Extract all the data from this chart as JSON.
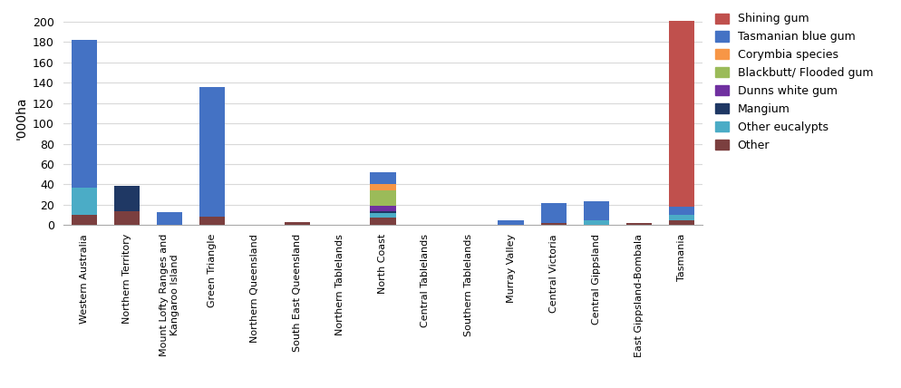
{
  "categories": [
    "Western Australia",
    "Northern Territory",
    "Mount Lofty Ranges and\nKangaroo Island",
    "Green Triangle",
    "Northern Queensland",
    "South East Queensland",
    "Northern Tablelands",
    "North Coast",
    "Central Tablelands",
    "Southern Tablelands",
    "Murray Valley",
    "Central Victoria",
    "Central Gippsland",
    "East Gippsland-Bombala",
    "Tasmania"
  ],
  "series": {
    "Other": {
      "color": "#7B3F3F",
      "values": [
        10,
        14,
        0,
        8,
        0,
        3,
        0,
        7,
        0,
        0,
        0,
        2,
        0,
        2,
        5
      ]
    },
    "Other eucalypts": {
      "color": "#4BACC6",
      "values": [
        27,
        0,
        0,
        0,
        0,
        0,
        0,
        5,
        0,
        0,
        0,
        0,
        5,
        0,
        5
      ]
    },
    "Mangium": {
      "color": "#1F3864",
      "values": [
        0,
        25,
        0,
        0,
        0,
        0,
        0,
        2,
        0,
        0,
        0,
        0,
        0,
        0,
        0
      ]
    },
    "Dunns white gum": {
      "color": "#7030A0",
      "values": [
        0,
        0,
        0,
        0,
        0,
        0,
        0,
        5,
        0,
        0,
        0,
        0,
        0,
        0,
        0
      ]
    },
    "Blackbutt/ Flooded gum": {
      "color": "#9BBB59",
      "values": [
        0,
        0,
        0,
        0,
        0,
        0,
        0,
        15,
        0,
        0,
        0,
        0,
        0,
        0,
        0
      ]
    },
    "Corymbia species": {
      "color": "#F79646",
      "values": [
        0,
        0,
        0,
        0,
        0,
        0,
        0,
        6,
        0,
        0,
        0,
        0,
        0,
        0,
        0
      ]
    },
    "Tasmanian blue gum": {
      "color": "#4472C4",
      "values": [
        145,
        0,
        13,
        128,
        0,
        0,
        0,
        12,
        0,
        0,
        5,
        20,
        18,
        0,
        8
      ]
    },
    "Shining gum": {
      "color": "#C0504D",
      "values": [
        0,
        0,
        0,
        0,
        0,
        0,
        0,
        0,
        0,
        0,
        0,
        0,
        0,
        0,
        183
      ]
    }
  },
  "ylabel": "'000ha",
  "ylim": [
    0,
    210
  ],
  "yticks": [
    0,
    20,
    40,
    60,
    80,
    100,
    120,
    140,
    160,
    180,
    200
  ],
  "legend_order": [
    "Shining gum",
    "Tasmanian blue gum",
    "Corymbia species",
    "Blackbutt/ Flooded gum",
    "Dunns white gum",
    "Mangium",
    "Other eucalypts",
    "Other"
  ],
  "bar_width": 0.6,
  "background_color": "#ffffff",
  "grid_color": "#d9d9d9",
  "label_fontsize": 8,
  "tick_fontsize": 9,
  "legend_fontsize": 9
}
